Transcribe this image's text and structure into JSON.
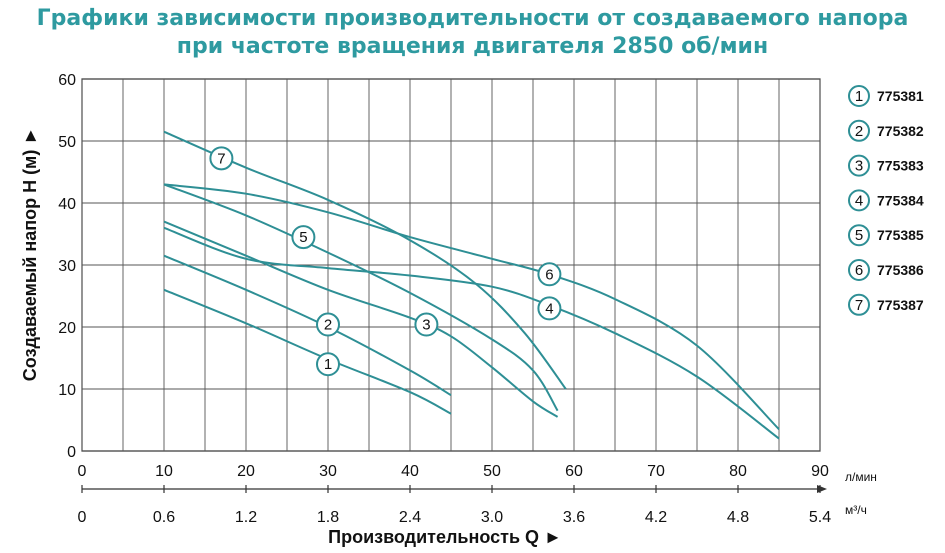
{
  "title_line1": "Графики зависимости производительности от создаваемого напора",
  "title_line2": "при частоте вращения двигателя 2850 об/мин",
  "chart_data": {
    "type": "line",
    "ylabel": "Создаваемый напор Н (м) ►",
    "xlabel": "Производительность Q ►",
    "x_unit_top": "л/мин",
    "x_unit_bottom": "м³/ч",
    "ylim": [
      0,
      60
    ],
    "xlim": [
      0,
      90
    ],
    "y_ticks": [
      "0",
      "10",
      "20",
      "30",
      "40",
      "50",
      "60"
    ],
    "x_ticks_top": [
      "0",
      "10",
      "20",
      "30",
      "40",
      "50",
      "60",
      "70",
      "80",
      "90"
    ],
    "x_ticks_bottom": [
      "0",
      "0.6",
      "1.2",
      "1.8",
      "2.4",
      "3.0",
      "3.6",
      "4.2",
      "4.8",
      "5.4"
    ],
    "grid": true,
    "line_color": "#2e8f95",
    "series": [
      {
        "name": "1",
        "label": "775381",
        "marker_at": [
          30,
          14
        ],
        "points": [
          [
            10,
            26
          ],
          [
            20,
            20.6
          ],
          [
            30,
            14.8
          ],
          [
            40,
            9.5
          ],
          [
            45,
            6
          ]
        ]
      },
      {
        "name": "2",
        "label": "775382",
        "marker_at": [
          30,
          20.4
        ],
        "points": [
          [
            10,
            31.5
          ],
          [
            20,
            26
          ],
          [
            30,
            20
          ],
          [
            40,
            13
          ],
          [
            45,
            9
          ]
        ]
      },
      {
        "name": "3",
        "label": "775383",
        "marker_at": [
          42,
          20.4
        ],
        "points": [
          [
            10,
            37
          ],
          [
            20,
            31.5
          ],
          [
            30,
            26
          ],
          [
            40,
            21.5
          ],
          [
            45,
            18.5
          ],
          [
            50,
            13.5
          ],
          [
            55,
            8
          ],
          [
            58,
            5.5
          ]
        ]
      },
      {
        "name": "4",
        "label": "775384",
        "marker_at": [
          57,
          23
        ],
        "points": [
          [
            10,
            36
          ],
          [
            20,
            31
          ],
          [
            30,
            29.5
          ],
          [
            40,
            28.3
          ],
          [
            50,
            26.5
          ],
          [
            57,
            23.5
          ],
          [
            65,
            19
          ],
          [
            75,
            12
          ],
          [
            85,
            2
          ]
        ]
      },
      {
        "name": "5",
        "label": "775385",
        "marker_at": [
          27,
          34.5
        ],
        "points": [
          [
            10,
            43
          ],
          [
            20,
            38
          ],
          [
            30,
            32
          ],
          [
            40,
            25.5
          ],
          [
            50,
            18
          ],
          [
            55,
            13
          ],
          [
            58,
            6.5
          ]
        ]
      },
      {
        "name": "6",
        "label": "775386",
        "marker_at": [
          57,
          28.5
        ],
        "points": [
          [
            10,
            43
          ],
          [
            20,
            41.5
          ],
          [
            30,
            38.5
          ],
          [
            40,
            34.5
          ],
          [
            50,
            31
          ],
          [
            57,
            28.5
          ],
          [
            65,
            24.5
          ],
          [
            75,
            17
          ],
          [
            85,
            3.5
          ]
        ]
      },
      {
        "name": "7",
        "label": "775387",
        "marker_at": [
          17,
          47.2
        ],
        "points": [
          [
            10,
            51.5
          ],
          [
            20,
            45.7
          ],
          [
            30,
            40.5
          ],
          [
            40,
            34
          ],
          [
            48,
            27
          ],
          [
            54,
            19
          ],
          [
            59,
            10
          ]
        ]
      }
    ]
  }
}
